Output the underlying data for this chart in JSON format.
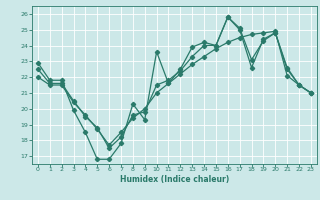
{
  "xlabel": "Humidex (Indice chaleur)",
  "xlim": [
    -0.5,
    23.5
  ],
  "ylim": [
    16.5,
    26.5
  ],
  "yticks": [
    17,
    18,
    19,
    20,
    21,
    22,
    23,
    24,
    25,
    26
  ],
  "xticks": [
    0,
    1,
    2,
    3,
    4,
    5,
    6,
    7,
    8,
    9,
    10,
    11,
    12,
    13,
    14,
    15,
    16,
    17,
    18,
    19,
    20,
    21,
    22,
    23
  ],
  "bg_color": "#cce8e8",
  "line_color": "#2a7a6a",
  "grid_color": "#ffffff",
  "line1_x": [
    0,
    1,
    2,
    3,
    4,
    5,
    6,
    7,
    8,
    9,
    10,
    11,
    12,
    13,
    14,
    15,
    16,
    17,
    18,
    19,
    20,
    21,
    22,
    23
  ],
  "line1_y": [
    22.9,
    21.8,
    21.8,
    19.9,
    18.5,
    16.8,
    16.8,
    17.8,
    20.3,
    19.3,
    23.6,
    21.6,
    22.5,
    23.9,
    24.2,
    24.0,
    25.8,
    25.0,
    22.6,
    24.4,
    24.8,
    22.5,
    21.5,
    21.0
  ],
  "line2_x": [
    0,
    1,
    2,
    3,
    4,
    5,
    6,
    7,
    8,
    9,
    10,
    11,
    12,
    13,
    14,
    15,
    16,
    17,
    18,
    19,
    20,
    21,
    22,
    23
  ],
  "line2_y": [
    22.0,
    21.5,
    21.5,
    20.4,
    19.6,
    18.7,
    17.7,
    18.5,
    19.4,
    20.0,
    21.0,
    21.6,
    22.2,
    22.8,
    23.3,
    23.8,
    24.2,
    24.5,
    24.7,
    24.8,
    24.9,
    22.1,
    21.5,
    21.0
  ],
  "line3_x": [
    0,
    1,
    2,
    3,
    4,
    5,
    6,
    7,
    8,
    9,
    10,
    11,
    12,
    13,
    14,
    15,
    16,
    17,
    18,
    19,
    20,
    21,
    22,
    23
  ],
  "line3_y": [
    22.5,
    21.6,
    21.6,
    20.5,
    19.5,
    18.8,
    17.5,
    18.2,
    19.6,
    19.8,
    21.5,
    21.8,
    22.4,
    23.3,
    24.0,
    24.0,
    25.8,
    25.1,
    23.1,
    24.3,
    24.8,
    22.6,
    21.5,
    21.0
  ]
}
